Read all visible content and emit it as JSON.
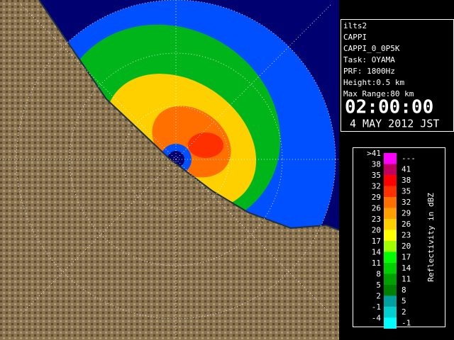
{
  "info": {
    "lines": [
      "ilts2",
      "CAPPI",
      "CAPPI_0_0P5K",
      "Task: OYAMA",
      "PRF: 1800Hz",
      "Height:0.5 km",
      "Max Range:80 km"
    ],
    "time": "02:00:00",
    "date": "4 MAY 2012 JST"
  },
  "legend": {
    "title": "Reflectivity in dBZ",
    "rows": [
      {
        "low": ">41",
        "high": "---",
        "color": "#ff00ff"
      },
      {
        "low": "38",
        "high": "41",
        "color": "#c00060"
      },
      {
        "low": "35",
        "high": "38",
        "color": "#ff0000"
      },
      {
        "low": "32",
        "high": "35",
        "color": "#ff3000"
      },
      {
        "low": "29",
        "high": "32",
        "color": "#ff7000"
      },
      {
        "low": "26",
        "high": "29",
        "color": "#ffa000"
      },
      {
        "low": "23",
        "high": "26",
        "color": "#ffd000"
      },
      {
        "low": "20",
        "high": "23",
        "color": "#ffff00"
      },
      {
        "low": "17",
        "high": "20",
        "color": "#a0ff00"
      },
      {
        "low": "14",
        "high": "17",
        "color": "#00ff00"
      },
      {
        "low": "11",
        "high": "14",
        "color": "#00d000"
      },
      {
        "low": "8",
        "high": "11",
        "color": "#00a000"
      },
      {
        "low": "5",
        "high": "8",
        "color": "#008000"
      },
      {
        "low": "2",
        "high": "5",
        "color": "#00a0a0"
      },
      {
        "low": "-1",
        "high": "2",
        "color": "#00d0d0"
      },
      {
        "low": "-4",
        "high": "-1",
        "color": "#00ffff"
      }
    ]
  }
}
